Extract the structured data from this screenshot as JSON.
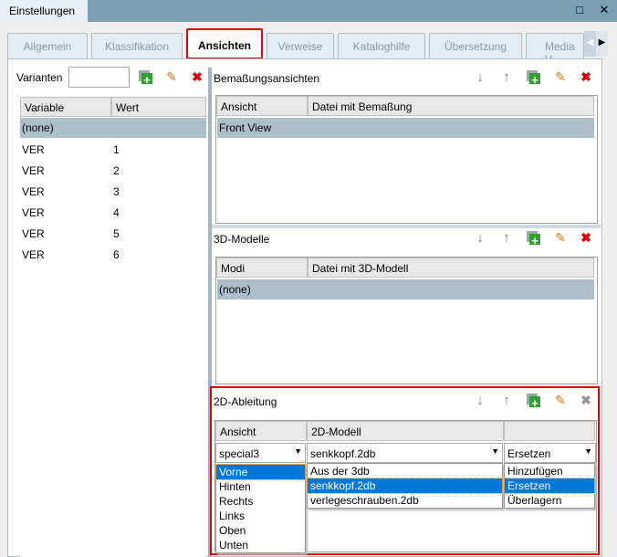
{
  "window": {
    "title": "Einstellungen",
    "maximize_icon": "□",
    "close_icon": "✕"
  },
  "tabs": [
    {
      "label": "Allgemein"
    },
    {
      "label": "Klassifikation"
    },
    {
      "label": "Ansichten"
    },
    {
      "label": "Verweise"
    },
    {
      "label": "Kataloghilfe"
    },
    {
      "label": "Übersetzung"
    },
    {
      "label": "Media V"
    }
  ],
  "active_tab": "Ansichten",
  "variants": {
    "label": "Varianten",
    "value": "",
    "columns": [
      "Variable",
      "Wert"
    ],
    "rows": [
      {
        "variable": "(none)",
        "value": ""
      },
      {
        "variable": "VER",
        "value": "1"
      },
      {
        "variable": "VER",
        "value": "2"
      },
      {
        "variable": "VER",
        "value": "3"
      },
      {
        "variable": "VER",
        "value": "4"
      },
      {
        "variable": "VER",
        "value": "5"
      },
      {
        "variable": "VER",
        "value": "6"
      }
    ]
  },
  "dimension_views": {
    "title": "Bemaßungsansichten",
    "columns": [
      "Ansicht",
      "Datei mit Bemaßung"
    ],
    "rows": [
      {
        "view": "Front View",
        "file": ""
      }
    ]
  },
  "models_3d": {
    "title": "3D-Modelle",
    "columns": [
      "Modi",
      "Datei mit 3D-Modell"
    ],
    "rows": [
      {
        "mode": "(none)",
        "file": ""
      }
    ]
  },
  "derivation_2d": {
    "title": "2D-Ableitung",
    "columns": [
      "Ansicht",
      "2D-Modell",
      ""
    ],
    "view_value": "special3",
    "model_value": "senkkopf.2db",
    "mode_value": "Ersetzen",
    "view_options": [
      "Vorne",
      "Hinten",
      "Rechts",
      "Links",
      "Oben",
      "Unten"
    ],
    "view_selected": "Vorne",
    "model_options": [
      "Aus der 3db",
      "senkkopf.2db",
      "verlegeschrauben.2db"
    ],
    "model_selected": "senkkopf.2db",
    "mode_options": [
      "Hinzufügen",
      "Ersetzen",
      "Überlagern"
    ],
    "mode_selected": "Ersetzen"
  },
  "colors": {
    "accent": "#0078d7",
    "highlight": "#e00000",
    "row_selected": "#aebfcc"
  }
}
